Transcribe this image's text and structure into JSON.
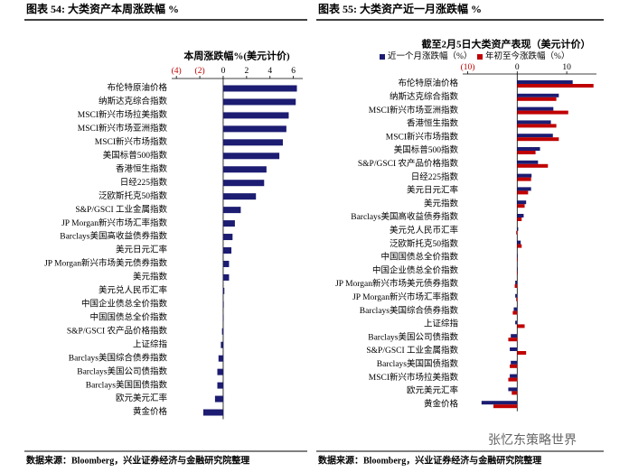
{
  "chart_data": [
    {
      "type": "hbar",
      "heading": "图表 54: 大类资产本周涨跌幅 %",
      "title": "本周涨跌幅%(美元计价)",
      "categories": [
        "布伦特原油价格",
        "纳斯达克综合指数",
        "MSCI新兴市场拉美指数",
        "MSCI新兴市场亚洲指数",
        "MSCI新兴市场指数",
        "美国标普500指数",
        "香港恒生指数",
        "日经225指数",
        "泛欧斯托克50指数",
        "S&P/GSCI 工业金属指数",
        "JP Morgan新兴市场汇率指数",
        "Barclays美国高收益债券指数",
        "美元日元汇率",
        "JP Morgan新兴市场美元债券指数",
        "美元指数",
        "美元兑人民币汇率",
        "中国企业债总全价指数",
        "中国国债总全价指数",
        "S&P/GSCI 农产品价格指数",
        "上证综指",
        "Barclays美国综合债券指数",
        "Barclays美国公司债指数",
        "Barclays美国国债指数",
        "欧元美元汇率",
        "黄金价格"
      ],
      "series": [
        {
          "color": "#1c1c72",
          "values": [
            6.3,
            6.2,
            5.6,
            5.4,
            5.1,
            4.8,
            3.7,
            3.5,
            2.8,
            1.5,
            1.0,
            0.8,
            0.7,
            0.5,
            0.5,
            0.1,
            0.05,
            0.02,
            -0.1,
            -0.2,
            -0.4,
            -0.5,
            -0.5,
            -0.7,
            -1.7
          ]
        }
      ],
      "xlim": [
        -4.4,
        6.8
      ],
      "xticks": [
        {
          "value": -4,
          "label": "(4)"
        },
        {
          "value": -2,
          "label": "(2)"
        },
        0,
        2,
        4,
        6
      ],
      "negative_tick_color": "#c00000",
      "source": "数据来源：Bloomberg，兴业证券经济与金融研究院整理"
    },
    {
      "type": "hbar",
      "heading": "图表 55: 大类资产近一月涨跌幅 %",
      "title": "截至2月5日大类资产表现（美元计价）",
      "categories": [
        "布伦特原油价格",
        "纳斯达克综合指数",
        "MSCI新兴市场亚洲指数",
        "香港恒生指数",
        "MSCI新兴市场指数",
        "美国标普500指数",
        "S&P/GSCI 农产品价格指数",
        "日经225指数",
        "美元日元汇率",
        "美元指数",
        "Barclays美国高收益债券指数",
        "美元兑人民币汇率",
        "泛欧斯托克50指数",
        "中国国债总全价指数",
        "中国企业债总全价指数",
        "JP Morgan新兴市场美元债券指数",
        "JP Morgan新兴市场汇率指数",
        "Barclays美国综合债券指数",
        "上证综指",
        "Barclays美国公司债指数",
        "S&P/GSCI 工业金属指数",
        "Barclays美国国债指数",
        "MSCI新兴市场拉美指数",
        "欧元美元汇率",
        "黄金价格"
      ],
      "series": [
        {
          "name": "近一个月涨跌幅（%）",
          "color": "#1c1c72",
          "values": [
            11.2,
            8.4,
            7.3,
            6.8,
            7.2,
            4.6,
            4.2,
            2.9,
            2.8,
            1.8,
            1.3,
            0.2,
            0.7,
            0.1,
            0.1,
            -0.4,
            -0.4,
            -0.7,
            -0.4,
            -1.3,
            -1.5,
            -1.3,
            -1.5,
            -1.8,
            -7.2
          ]
        },
        {
          "name": "年初至今涨跌幅（%）",
          "color": "#c00000",
          "values": [
            15.4,
            7.9,
            10.3,
            7.9,
            8.4,
            3.7,
            6.2,
            2.8,
            2.2,
            1.5,
            0.9,
            -0.2,
            0.9,
            0.1,
            0.1,
            -0.5,
            -0.2,
            -0.9,
            1.5,
            -1.8,
            1.8,
            -1.5,
            -1.8,
            -1.1,
            -4.8
          ]
        }
      ],
      "xlim": [
        -11,
        16
      ],
      "xticks": [
        {
          "value": -10,
          "label": "(10)"
        },
        0,
        10
      ],
      "negative_tick_color": "#c00000",
      "source": "数据来源：Bloomberg，兴业证券经济与金融研究院整理"
    }
  ],
  "watermark": "张忆东策略世界"
}
